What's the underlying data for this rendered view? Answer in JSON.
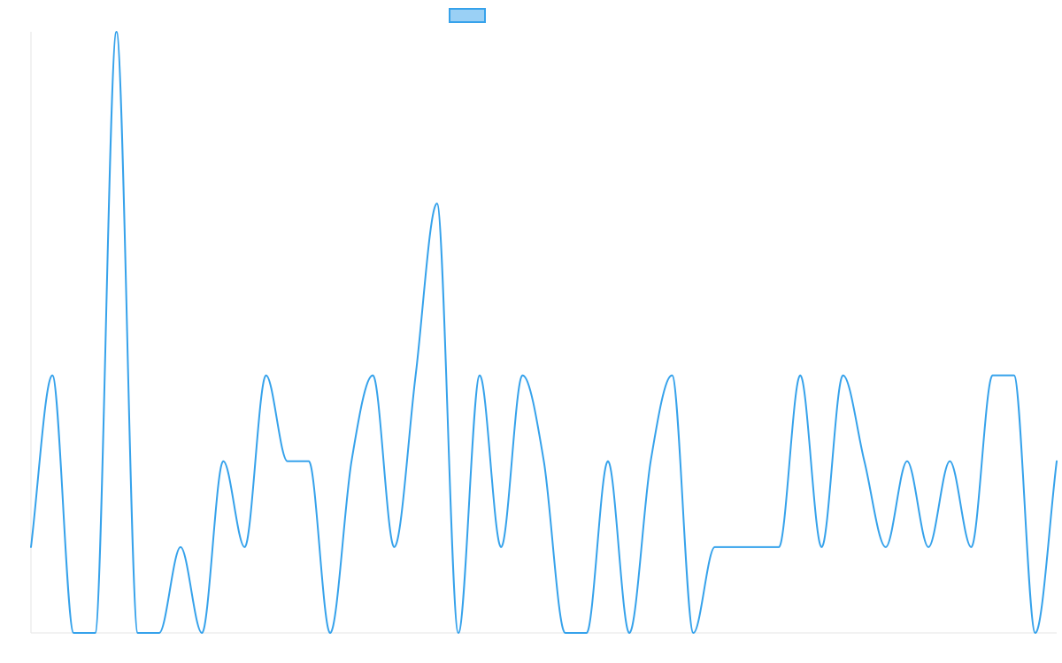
{
  "chart_data": {
    "type": "line",
    "title": "",
    "xlabel": "",
    "ylabel": "",
    "ylim": [
      0,
      7
    ],
    "grid": false,
    "legend": {
      "placement": "top-center",
      "color_fill": "#9ad0f5",
      "color_stroke": "#36a2eb"
    },
    "series": [
      {
        "color": "#36a2eb",
        "values": [
          1,
          3,
          0,
          0,
          7,
          0,
          0,
          1,
          0,
          2,
          1,
          3,
          2,
          2,
          0,
          2,
          3,
          1,
          3,
          5,
          0,
          3,
          1,
          3,
          2,
          0,
          0,
          2,
          0,
          2,
          3,
          0,
          1,
          1,
          1,
          1,
          3,
          1,
          3,
          2,
          1,
          2,
          1,
          2,
          1,
          3,
          3,
          0,
          2
        ]
      }
    ]
  }
}
